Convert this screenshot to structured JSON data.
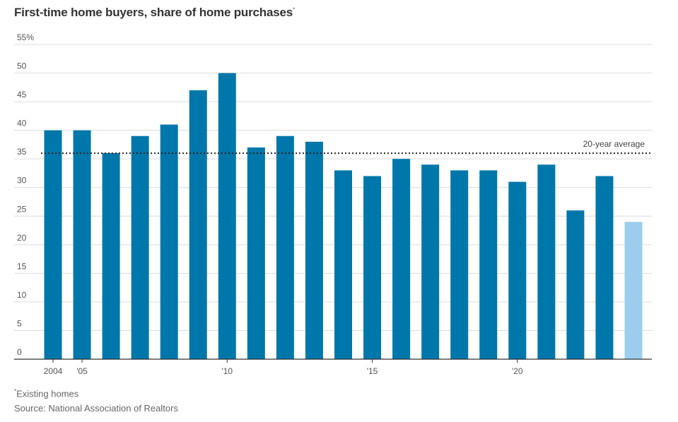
{
  "chart_data": {
    "type": "bar",
    "title": "First-time home buyers, share of home purchases",
    "title_marker": "*",
    "xlabel": "",
    "ylabel": "",
    "ylim": [
      0,
      55
    ],
    "y_ticks": [
      0,
      5,
      10,
      15,
      20,
      25,
      30,
      35,
      40,
      45,
      50,
      55
    ],
    "y_top_tick_label": "55%",
    "grid": true,
    "categories": [
      "2004",
      "2005",
      "2006",
      "2007",
      "2008",
      "2009",
      "2010",
      "2011",
      "2012",
      "2013",
      "2014",
      "2015",
      "2016",
      "2017",
      "2018",
      "2019",
      "2020",
      "2021",
      "2022",
      "2023",
      "2024"
    ],
    "x_tick_labels": [
      {
        "category": "2004",
        "label": "2004"
      },
      {
        "category": "2005",
        "label": "'05"
      },
      {
        "category": "2010",
        "label": "'10"
      },
      {
        "category": "2015",
        "label": "'15"
      },
      {
        "category": "2020",
        "label": "'20"
      }
    ],
    "values": [
      40,
      40,
      36,
      39,
      41,
      47,
      50,
      37,
      39,
      38,
      33,
      32,
      35,
      34,
      33,
      33,
      31,
      34,
      26,
      32,
      24
    ],
    "bar_color": "#0077aa",
    "highlight_color": "#9dcdee",
    "highlight_index": 20,
    "reference_line": {
      "value": 36,
      "label": "20-year average"
    }
  },
  "footnote": {
    "marker": "*",
    "text": "Existing homes"
  },
  "source": "Source: National Association of Realtors"
}
